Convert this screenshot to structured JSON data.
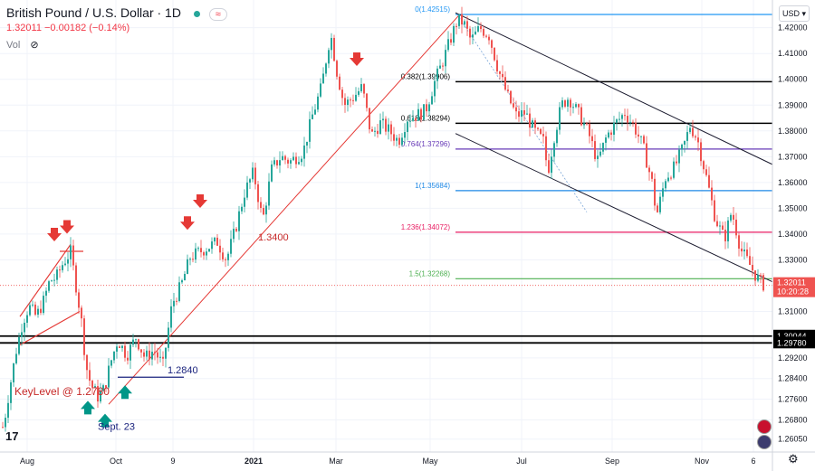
{
  "header": {
    "title": "British Pound / U.S. Dollar · 1D",
    "quote": "1.32011 −0.00182 (−0.14%)",
    "vol_label": "Vol",
    "status_glyph": "≈",
    "currency": "USD"
  },
  "colors": {
    "up": "#26a69a",
    "down": "#ef5350",
    "fib_0": "#2196f3",
    "fib_0382": "#000000",
    "fib_0618": "#000000",
    "fib_0764": "#673ab7",
    "fib_1": "#1e88e5",
    "fib_1236": "#e91e63",
    "fib_15": "#4caf50",
    "arrow_red": "#e53935",
    "arrow_green": "#009688",
    "price_tag": "#ef5350"
  },
  "chart_data": {
    "type": "candlestick",
    "symbol": "British Pound / U.S. Dollar",
    "interval": "1D",
    "y_axis_ticks": [
      "1.42000",
      "1.41000",
      "1.40000",
      "1.39000",
      "1.38000",
      "1.37000",
      "1.36000",
      "1.35000",
      "1.34000",
      "1.33000",
      "1.31000",
      "1.29200",
      "1.28400",
      "1.27600",
      "1.26800",
      "1.26050"
    ],
    "x_axis_ticks": [
      "Aug",
      "Oct",
      "9",
      "2021",
      "Mar",
      "May",
      "Jul",
      "Sep",
      "Nov",
      "6"
    ],
    "ylim": [
      1.2555,
      1.429
    ],
    "fib_levels": [
      {
        "label": "0(1.42515)",
        "value": 1.42515,
        "color": "#2196f3"
      },
      {
        "label": "0.382(1.39906)",
        "value": 1.39906,
        "color": "#000000"
      },
      {
        "label": "0.618(1.38294)",
        "value": 1.38294,
        "color": "#000000"
      },
      {
        "label": "0.764(1.37296)",
        "value": 1.37296,
        "color": "#673ab7"
      },
      {
        "label": "1(1.35684)",
        "value": 1.35684,
        "color": "#1e88e5"
      },
      {
        "label": "1.236(1.34072)",
        "value": 1.34072,
        "color": "#e91e63"
      },
      {
        "label": "1.5(1.32268)",
        "value": 1.32268,
        "color": "#4caf50"
      }
    ],
    "horizontal_levels": [
      {
        "label": "1.30044",
        "value": 1.30044
      },
      {
        "label": "1.29780",
        "value": 1.2978
      }
    ],
    "current_price": {
      "label": "1.32011",
      "value": 1.32011,
      "countdown": "10:20:28"
    },
    "annotations": {
      "level_1_34": "1.3400",
      "level_1_284": "1.2840",
      "key_level": "KeyLevel @ 1.2780",
      "sept_23": "Sept. 23"
    },
    "path": [
      [
        0,
        1.261
      ],
      [
        5,
        1.268
      ],
      [
        10,
        1.279
      ],
      [
        18,
        1.295
      ],
      [
        25,
        1.306
      ],
      [
        32,
        1.312
      ],
      [
        40,
        1.308
      ],
      [
        48,
        1.314
      ],
      [
        55,
        1.322
      ],
      [
        62,
        1.323
      ],
      [
        70,
        1.329
      ],
      [
        78,
        1.333
      ],
      [
        84,
        1.32
      ],
      [
        90,
        1.306
      ],
      [
        95,
        1.289
      ],
      [
        100,
        1.282
      ],
      [
        108,
        1.277
      ],
      [
        115,
        1.28
      ],
      [
        122,
        1.29
      ],
      [
        130,
        1.299
      ],
      [
        140,
        1.293
      ],
      [
        150,
        1.3
      ],
      [
        160,
        1.292
      ],
      [
        170,
        1.295
      ],
      [
        180,
        1.289
      ],
      [
        190,
        1.313
      ],
      [
        200,
        1.32
      ],
      [
        210,
        1.331
      ],
      [
        220,
        1.333
      ],
      [
        230,
        1.335
      ],
      [
        240,
        1.337
      ],
      [
        250,
        1.33
      ],
      [
        260,
        1.342
      ],
      [
        270,
        1.356
      ],
      [
        280,
        1.364
      ],
      [
        290,
        1.345
      ],
      [
        300,
        1.365
      ],
      [
        310,
        1.37
      ],
      [
        320,
        1.368
      ],
      [
        335,
        1.372
      ],
      [
        345,
        1.386
      ],
      [
        355,
        1.397
      ],
      [
        365,
        1.418
      ],
      [
        372,
        1.403
      ],
      [
        380,
        1.39
      ],
      [
        390,
        1.393
      ],
      [
        400,
        1.397
      ],
      [
        410,
        1.378
      ],
      [
        420,
        1.383
      ],
      [
        430,
        1.38
      ],
      [
        440,
        1.376
      ],
      [
        450,
        1.385
      ],
      [
        460,
        1.386
      ],
      [
        470,
        1.388
      ],
      [
        480,
        1.399
      ],
      [
        490,
        1.408
      ],
      [
        500,
        1.418
      ],
      [
        505,
        1.423
      ],
      [
        512,
        1.422
      ],
      [
        520,
        1.415
      ],
      [
        530,
        1.42
      ],
      [
        540,
        1.417
      ],
      [
        550,
        1.404
      ],
      [
        560,
        1.394
      ],
      [
        570,
        1.386
      ],
      [
        580,
        1.387
      ],
      [
        590,
        1.38
      ],
      [
        600,
        1.376
      ],
      [
        605,
        1.364
      ],
      [
        612,
        1.378
      ],
      [
        620,
        1.39
      ],
      [
        628,
        1.393
      ],
      [
        640,
        1.386
      ],
      [
        650,
        1.379
      ],
      [
        660,
        1.368
      ],
      [
        670,
        1.378
      ],
      [
        680,
        1.383
      ],
      [
        690,
        1.387
      ],
      [
        700,
        1.382
      ],
      [
        710,
        1.374
      ],
      [
        720,
        1.36
      ],
      [
        725,
        1.347
      ],
      [
        735,
        1.362
      ],
      [
        745,
        1.366
      ],
      [
        755,
        1.374
      ],
      [
        762,
        1.382
      ],
      [
        770,
        1.377
      ],
      [
        780,
        1.362
      ],
      [
        790,
        1.346
      ],
      [
        800,
        1.338
      ],
      [
        808,
        1.349
      ],
      [
        818,
        1.334
      ],
      [
        828,
        1.328
      ],
      [
        836,
        1.323
      ],
      [
        843,
        1.3205
      ]
    ]
  }
}
